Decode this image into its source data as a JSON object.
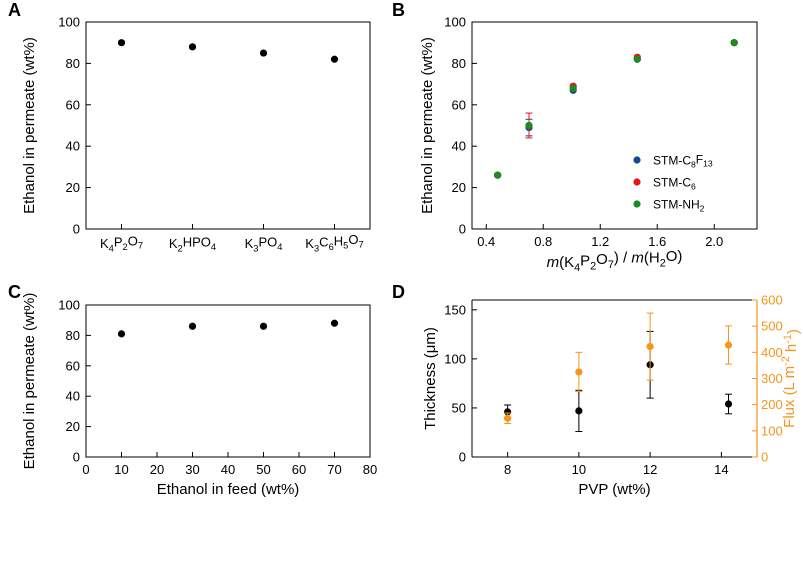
{
  "chart_data": [
    {
      "panel": "A",
      "type": "scatter",
      "title": "",
      "categories": [
        {
          "base": "K",
          "parts": [
            [
              "K",
              "n"
            ],
            [
              "4",
              "s"
            ],
            [
              "P",
              "n"
            ],
            [
              "2",
              "s"
            ],
            [
              "O",
              "n"
            ],
            [
              "7",
              "s"
            ]
          ],
          "text": "K4P2O7"
        },
        {
          "base": "K",
          "parts": [
            [
              "K",
              "n"
            ],
            [
              "2",
              "s"
            ],
            [
              "HPO",
              "n"
            ],
            [
              "4",
              "s"
            ]
          ],
          "text": "K2HPO4"
        },
        {
          "base": "K",
          "parts": [
            [
              "K",
              "n"
            ],
            [
              "3",
              "s"
            ],
            [
              "PO",
              "n"
            ],
            [
              "4",
              "s"
            ]
          ],
          "text": "K3PO4"
        },
        {
          "base": "K",
          "parts": [
            [
              "K",
              "n"
            ],
            [
              "3",
              "s"
            ],
            [
              "C",
              "n"
            ],
            [
              "6",
              "s"
            ],
            [
              "H",
              "n"
            ],
            [
              "5",
              "s"
            ],
            [
              "O",
              "n"
            ],
            [
              "7",
              "s"
            ]
          ],
          "text": "K3C6H5O7"
        }
      ],
      "values": [
        90,
        88,
        85,
        82
      ],
      "ylabel": "Ethanol in permeate (wt%)",
      "ylim": [
        0,
        100
      ],
      "yticks": [
        0,
        20,
        40,
        60,
        80,
        100
      ],
      "color": "#000000"
    },
    {
      "panel": "B",
      "type": "scatter",
      "xlabel": "m(K4P2O7) / m(H2O)",
      "ylabel": "Ethanol in permeate (wt%)",
      "xlim": [
        0.3,
        2.3
      ],
      "ylim": [
        0,
        100
      ],
      "xticks": [
        "0.4",
        "0.8",
        "1.2",
        "1.6",
        "2.0"
      ],
      "yticks": [
        0,
        20,
        40,
        60,
        80,
        100
      ],
      "legend_position": "bottom-right",
      "series": [
        {
          "name": "STM-C8F13",
          "label_parts": [
            [
              "STM-C",
              "n"
            ],
            [
              "8",
              "s"
            ],
            [
              "F",
              "n"
            ],
            [
              "13",
              "s"
            ]
          ],
          "color": "#0d4f8c",
          "x": [
            0.48,
            0.7,
            1.01,
            1.46,
            2.14
          ],
          "y": [
            26,
            49,
            67,
            82,
            90
          ],
          "err": [
            0,
            4,
            0,
            0,
            0
          ]
        },
        {
          "name": "STM-C6",
          "label_parts": [
            [
              "STM-C",
              "n"
            ],
            [
              "6",
              "s"
            ]
          ],
          "color": "#e8161b",
          "x": [
            0.48,
            0.7,
            1.01,
            1.46,
            2.14
          ],
          "y": [
            26,
            50,
            69,
            83,
            90
          ],
          "err": [
            0,
            6,
            0,
            0,
            0
          ]
        },
        {
          "name": "STM-NH2",
          "label_parts": [
            [
              "STM-NH",
              "n"
            ],
            [
              "2",
              "s"
            ]
          ],
          "color": "#1e8a22",
          "x": [
            0.48,
            0.7,
            1.01,
            1.46,
            2.14
          ],
          "y": [
            26,
            50,
            68,
            82,
            90
          ],
          "err": [
            0,
            0,
            0,
            0,
            0
          ]
        }
      ]
    },
    {
      "panel": "C",
      "type": "scatter",
      "xlabel": "Ethanol in feed (wt%)",
      "ylabel": "Ethanol in permeate (wt%)",
      "xlim": [
        0,
        80
      ],
      "ylim": [
        0,
        100
      ],
      "xticks": [
        0,
        10,
        20,
        30,
        40,
        50,
        60,
        70,
        80
      ],
      "yticks": [
        0,
        20,
        40,
        60,
        80,
        100
      ],
      "x": [
        10,
        30,
        50,
        70
      ],
      "y": [
        81,
        86,
        86,
        88
      ],
      "color": "#000000"
    },
    {
      "panel": "D",
      "type": "scatter",
      "xlabel": "PVP (wt%)",
      "ylabel": "Thickness (μm)",
      "ylabel_right": "Flux (L m-2 h-1)",
      "ylabel_right_parts": [
        [
          "Flux (L m",
          "n"
        ],
        [
          "-2",
          "s"
        ],
        [
          " h",
          "n"
        ],
        [
          "-1",
          "s"
        ],
        [
          ")",
          "n"
        ]
      ],
      "xlim": [
        7,
        15
      ],
      "xticks": [
        8,
        10,
        12,
        14
      ],
      "ylim": [
        0,
        160
      ],
      "yticks": [
        0,
        50,
        100,
        150
      ],
      "ylim_right": [
        0,
        600
      ],
      "yticks_right": [
        0,
        100,
        200,
        300,
        400,
        500,
        600
      ],
      "series": [
        {
          "name": "Thickness",
          "axis": "left",
          "color": "#000000",
          "x": [
            8,
            10,
            12,
            14.2
          ],
          "y": [
            46,
            47,
            94,
            54
          ],
          "err": [
            7,
            21,
            34,
            10
          ]
        },
        {
          "name": "Flux",
          "axis": "right",
          "color": "#f7941d",
          "x": [
            8,
            10,
            12,
            14.2
          ],
          "y": [
            148,
            325,
            422,
            428
          ],
          "err": [
            20,
            75,
            128,
            73
          ]
        }
      ],
      "right_axis_color": "#f7941d"
    }
  ]
}
